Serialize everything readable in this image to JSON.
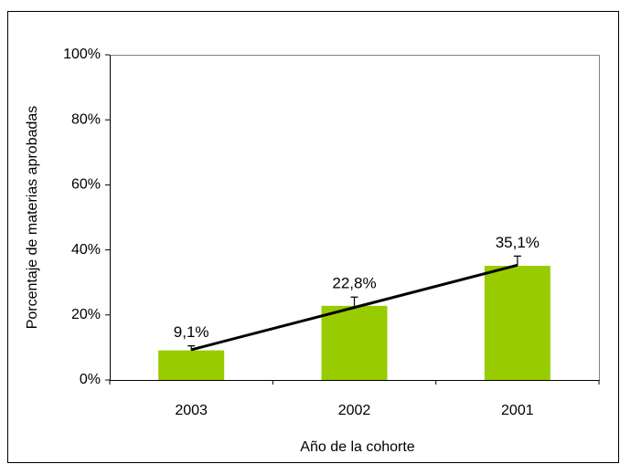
{
  "chart_data": {
    "type": "bar",
    "x_label": "Año de la cohorte",
    "y_label": "Porcentaje de materias aprobadas",
    "categories": [
      "2003",
      "2002",
      "2001"
    ],
    "values": [
      9.1,
      22.8,
      35.1
    ],
    "value_labels": [
      "9,1%",
      "22,8%",
      "35,1%"
    ],
    "errors": [
      1.4,
      2.7,
      3.0
    ],
    "trend_values": [
      9.3,
      22.3,
      35.3
    ],
    "color": "#99cc00",
    "ylim": [
      0,
      100
    ],
    "yticks": [
      {
        "value": 0,
        "label": "0%"
      },
      {
        "value": 20,
        "label": "20%"
      },
      {
        "value": 40,
        "label": "40%"
      },
      {
        "value": 60,
        "label": "60%"
      },
      {
        "value": 80,
        "label": "80%"
      },
      {
        "value": 100,
        "label": "100%"
      }
    ],
    "grid": false
  }
}
